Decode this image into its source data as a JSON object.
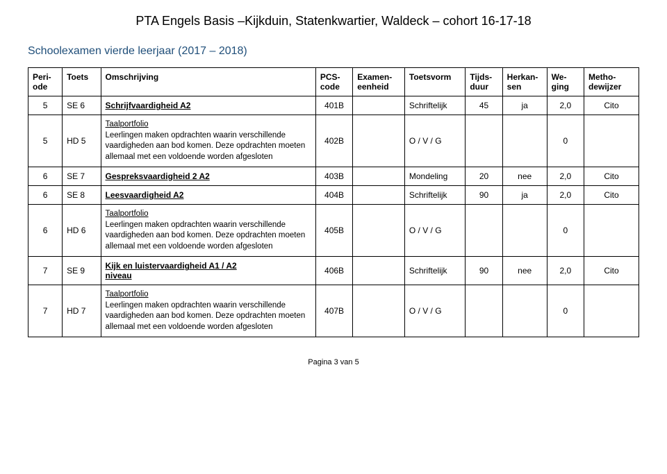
{
  "title": "PTA Engels Basis –Kijkduin, Statenkwartier, Waldeck – cohort 16-17-18",
  "subtitle": "Schoolexamen vierde leerjaar (2017 – 2018)",
  "columns": [
    {
      "line1": "Peri-",
      "line2": "ode"
    },
    {
      "line1": "Toets",
      "line2": ""
    },
    {
      "line1": "Omschrijving",
      "line2": ""
    },
    {
      "line1": "PCS-",
      "line2": "code"
    },
    {
      "line1": "Examen-",
      "line2": "eenheid"
    },
    {
      "line1": "Toetsvorm",
      "line2": ""
    },
    {
      "line1": "Tijds-",
      "line2": "duur"
    },
    {
      "line1": "Herkan-",
      "line2": "sen"
    },
    {
      "line1": "We-",
      "line2": "ging"
    },
    {
      "line1": "Metho-",
      "line2": "dewijzer"
    }
  ],
  "rows": [
    {
      "periode": "5",
      "toets": "SE 6",
      "omschrijving_bold": "Schrijfvaardigheid A2",
      "omschrijving_underline": true,
      "pcs": "401B",
      "exameneenheid": "",
      "toetsvorm": "Schriftelijk",
      "tijdsduur": "45",
      "herkansen": "ja",
      "weging": "2,0",
      "methode": "Cito"
    },
    {
      "periode": "5",
      "toets": "HD 5",
      "omschrijving_uhead": "Taalportfolio",
      "omschrijving_body": "Leerlingen maken opdrachten waarin verschillende vaardigheden aan bod komen. Deze opdrachten moeten allemaal met een voldoende worden afgesloten",
      "pcs": "402B",
      "exameneenheid": "",
      "toetsvorm": "O / V / G",
      "tijdsduur": "",
      "herkansen": "",
      "weging": "0",
      "methode": ""
    },
    {
      "periode": "6",
      "toets": "SE 7",
      "omschrijving_bold": "Gespreksvaardigheid 2 A2",
      "omschrijving_underline": true,
      "pcs": "403B",
      "exameneenheid": "",
      "toetsvorm": "Mondeling",
      "tijdsduur": "20",
      "herkansen": "nee",
      "weging": "2,0",
      "methode": "Cito"
    },
    {
      "periode": "6",
      "toets": "SE 8",
      "omschrijving_bold": " Leesvaardigheid A2",
      "omschrijving_underline": true,
      "pcs": "404B",
      "exameneenheid": "",
      "toetsvorm": "Schriftelijk",
      "tijdsduur": "90",
      "herkansen": "ja",
      "weging": "2,0",
      "methode": "Cito"
    },
    {
      "periode": "6",
      "toets": "HD 6",
      "omschrijving_uhead": "Taalportfolio",
      "omschrijving_body": "Leerlingen maken opdrachten waarin verschillende vaardigheden aan bod komen. Deze opdrachten moeten allemaal met een voldoende worden afgesloten",
      "pcs": "405B",
      "exameneenheid": "",
      "toetsvorm": "O / V / G",
      "tijdsduur": "",
      "herkansen": "",
      "weging": "0",
      "methode": ""
    },
    {
      "periode": "7",
      "toets": "SE 9",
      "omschrijving_bold_l1": "Kijk en luistervaardigheid A1 / A2",
      "omschrijving_bold_l2": "niveau",
      "omschrijving_underline": true,
      "pcs": "406B",
      "exameneenheid": "",
      "toetsvorm": "Schriftelijk",
      "tijdsduur": "90",
      "herkansen": "nee",
      "weging": "2,0",
      "methode": "Cito"
    },
    {
      "periode": "7",
      "toets": "HD 7",
      "omschrijving_uhead": "Taalportfolio",
      "omschrijving_body": "Leerlingen maken opdrachten waarin verschillende vaardigheden aan bod komen. Deze opdrachten moeten allemaal met een voldoende worden afgesloten",
      "pcs": "407B",
      "exameneenheid": "",
      "toetsvorm": "O / V / G",
      "tijdsduur": "",
      "herkansen": "",
      "weging": "0",
      "methode": ""
    }
  ],
  "footer": "Pagina 3 van 5"
}
